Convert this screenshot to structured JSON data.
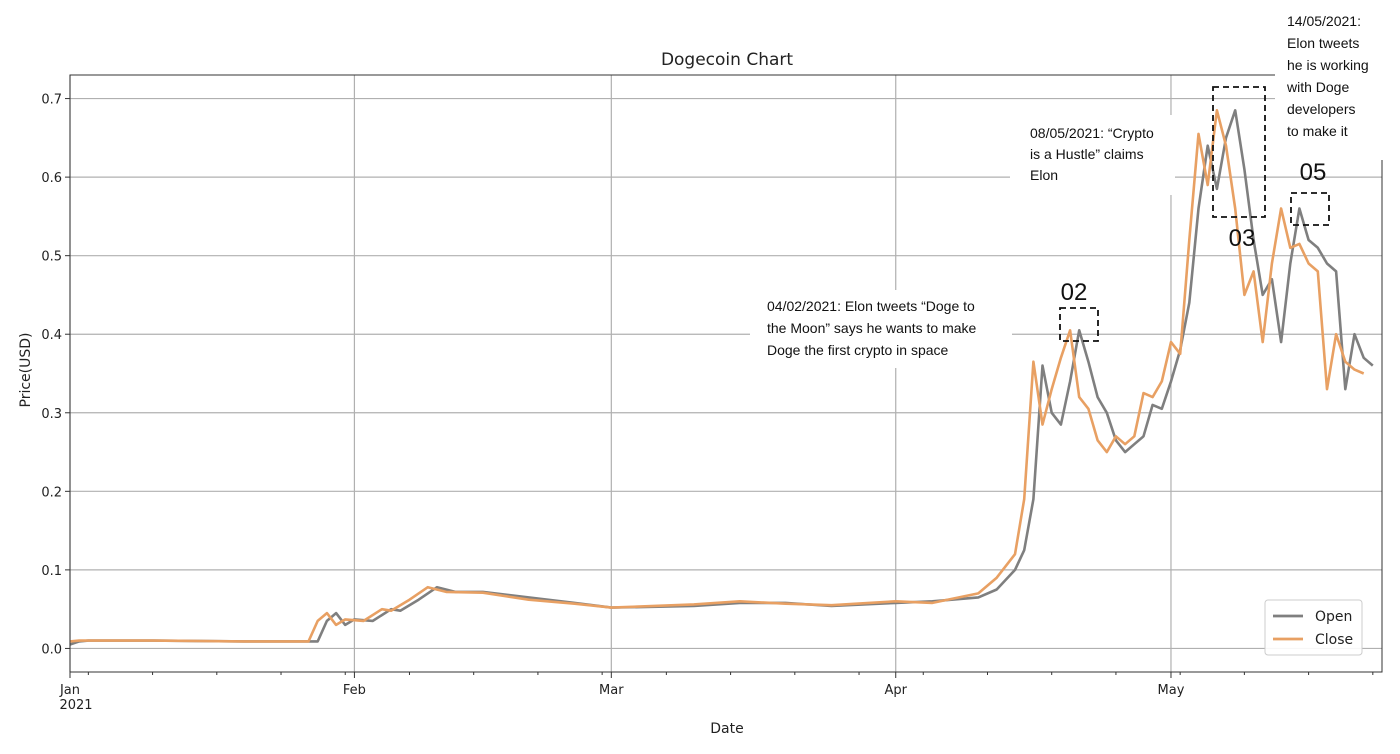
{
  "chart_data": {
    "type": "line",
    "title": "Dogecoin Chart",
    "xlabel": "Date",
    "ylabel": "Price(USD)",
    "ylim": [
      -0.03,
      0.73
    ],
    "xlim": [
      "2021-01-01",
      "2021-05-24"
    ],
    "grid": true,
    "legend_position": "lower-right",
    "x_ticks": [
      {
        "date": "2021-01-01",
        "label": "Jan",
        "sublabel": "2021"
      },
      {
        "date": "2021-02-01",
        "label": "Feb",
        "sublabel": ""
      },
      {
        "date": "2021-03-01",
        "label": "Mar",
        "sublabel": ""
      },
      {
        "date": "2021-04-01",
        "label": "Apr",
        "sublabel": ""
      },
      {
        "date": "2021-05-01",
        "label": "May",
        "sublabel": ""
      }
    ],
    "y_ticks": [
      {
        "value": 0.0,
        "label": "0.0"
      },
      {
        "value": 0.1,
        "label": "0.1"
      },
      {
        "value": 0.2,
        "label": "0.2"
      },
      {
        "value": 0.3,
        "label": "0.3"
      },
      {
        "value": 0.4,
        "label": "0.4"
      },
      {
        "value": 0.5,
        "label": "0.5"
      },
      {
        "value": 0.6,
        "label": "0.6"
      },
      {
        "value": 0.7,
        "label": "0.7"
      }
    ],
    "series": [
      {
        "name": "Open",
        "color": "#7f7f7f",
        "points": [
          [
            "2021-01-01",
            0.005
          ],
          [
            "2021-01-02",
            0.009
          ],
          [
            "2021-01-03",
            0.01
          ],
          [
            "2021-01-10",
            0.01
          ],
          [
            "2021-01-20",
            0.009
          ],
          [
            "2021-01-27",
            0.009
          ],
          [
            "2021-01-28",
            0.009
          ],
          [
            "2021-01-29",
            0.035
          ],
          [
            "2021-01-30",
            0.045
          ],
          [
            "2021-01-31",
            0.03
          ],
          [
            "2021-02-01",
            0.037
          ],
          [
            "2021-02-03",
            0.035
          ],
          [
            "2021-02-05",
            0.05
          ],
          [
            "2021-02-06",
            0.048
          ],
          [
            "2021-02-08",
            0.062
          ],
          [
            "2021-02-10",
            0.078
          ],
          [
            "2021-02-12",
            0.072
          ],
          [
            "2021-02-15",
            0.072
          ],
          [
            "2021-02-20",
            0.065
          ],
          [
            "2021-02-25",
            0.058
          ],
          [
            "2021-03-01",
            0.052
          ],
          [
            "2021-03-10",
            0.054
          ],
          [
            "2021-03-15",
            0.058
          ],
          [
            "2021-03-20",
            0.058
          ],
          [
            "2021-03-25",
            0.054
          ],
          [
            "2021-04-01",
            0.058
          ],
          [
            "2021-04-05",
            0.06
          ],
          [
            "2021-04-10",
            0.065
          ],
          [
            "2021-04-12",
            0.075
          ],
          [
            "2021-04-14",
            0.1
          ],
          [
            "2021-04-15",
            0.125
          ],
          [
            "2021-04-16",
            0.19
          ],
          [
            "2021-04-17",
            0.36
          ],
          [
            "2021-04-18",
            0.3
          ],
          [
            "2021-04-19",
            0.285
          ],
          [
            "2021-04-20",
            0.34
          ],
          [
            "2021-04-21",
            0.405
          ],
          [
            "2021-04-22",
            0.365
          ],
          [
            "2021-04-23",
            0.32
          ],
          [
            "2021-04-24",
            0.3
          ],
          [
            "2021-04-25",
            0.265
          ],
          [
            "2021-04-26",
            0.25
          ],
          [
            "2021-04-27",
            0.26
          ],
          [
            "2021-04-28",
            0.27
          ],
          [
            "2021-04-29",
            0.31
          ],
          [
            "2021-04-30",
            0.305
          ],
          [
            "2021-05-01",
            0.34
          ],
          [
            "2021-05-02",
            0.38
          ],
          [
            "2021-05-03",
            0.44
          ],
          [
            "2021-05-04",
            0.56
          ],
          [
            "2021-05-05",
            0.64
          ],
          [
            "2021-05-06",
            0.585
          ],
          [
            "2021-05-07",
            0.65
          ],
          [
            "2021-05-08",
            0.685
          ],
          [
            "2021-05-09",
            0.61
          ],
          [
            "2021-05-10",
            0.52
          ],
          [
            "2021-05-11",
            0.45
          ],
          [
            "2021-05-12",
            0.47
          ],
          [
            "2021-05-13",
            0.39
          ],
          [
            "2021-05-14",
            0.49
          ],
          [
            "2021-05-15",
            0.56
          ],
          [
            "2021-05-16",
            0.52
          ],
          [
            "2021-05-17",
            0.51
          ],
          [
            "2021-05-18",
            0.49
          ],
          [
            "2021-05-19",
            0.48
          ],
          [
            "2021-05-20",
            0.33
          ],
          [
            "2021-05-21",
            0.4
          ],
          [
            "2021-05-22",
            0.37
          ],
          [
            "2021-05-23",
            0.36
          ]
        ]
      },
      {
        "name": "Close",
        "color": "#e8a063",
        "points": [
          [
            "2021-01-01",
            0.009
          ],
          [
            "2021-01-02",
            0.01
          ],
          [
            "2021-01-10",
            0.01
          ],
          [
            "2021-01-20",
            0.009
          ],
          [
            "2021-01-27",
            0.009
          ],
          [
            "2021-01-28",
            0.035
          ],
          [
            "2021-01-29",
            0.045
          ],
          [
            "2021-01-30",
            0.03
          ],
          [
            "2021-01-31",
            0.037
          ],
          [
            "2021-02-02",
            0.035
          ],
          [
            "2021-02-04",
            0.05
          ],
          [
            "2021-02-05",
            0.048
          ],
          [
            "2021-02-07",
            0.062
          ],
          [
            "2021-02-09",
            0.078
          ],
          [
            "2021-02-11",
            0.072
          ],
          [
            "2021-02-15",
            0.071
          ],
          [
            "2021-02-20",
            0.062
          ],
          [
            "2021-02-25",
            0.057
          ],
          [
            "2021-03-01",
            0.052
          ],
          [
            "2021-03-10",
            0.056
          ],
          [
            "2021-03-15",
            0.06
          ],
          [
            "2021-03-20",
            0.057
          ],
          [
            "2021-03-25",
            0.055
          ],
          [
            "2021-04-01",
            0.06
          ],
          [
            "2021-04-05",
            0.058
          ],
          [
            "2021-04-10",
            0.07
          ],
          [
            "2021-04-12",
            0.09
          ],
          [
            "2021-04-14",
            0.12
          ],
          [
            "2021-04-15",
            0.19
          ],
          [
            "2021-04-16",
            0.365
          ],
          [
            "2021-04-17",
            0.285
          ],
          [
            "2021-04-18",
            0.33
          ],
          [
            "2021-04-19",
            0.37
          ],
          [
            "2021-04-20",
            0.405
          ],
          [
            "2021-04-21",
            0.32
          ],
          [
            "2021-04-22",
            0.305
          ],
          [
            "2021-04-23",
            0.265
          ],
          [
            "2021-04-24",
            0.25
          ],
          [
            "2021-04-25",
            0.27
          ],
          [
            "2021-04-26",
            0.26
          ],
          [
            "2021-04-27",
            0.27
          ],
          [
            "2021-04-28",
            0.325
          ],
          [
            "2021-04-29",
            0.32
          ],
          [
            "2021-04-30",
            0.34
          ],
          [
            "2021-05-01",
            0.39
          ],
          [
            "2021-05-02",
            0.375
          ],
          [
            "2021-05-03",
            0.52
          ],
          [
            "2021-05-04",
            0.655
          ],
          [
            "2021-05-05",
            0.59
          ],
          [
            "2021-05-06",
            0.685
          ],
          [
            "2021-05-07",
            0.64
          ],
          [
            "2021-05-08",
            0.56
          ],
          [
            "2021-05-09",
            0.45
          ],
          [
            "2021-05-10",
            0.48
          ],
          [
            "2021-05-11",
            0.39
          ],
          [
            "2021-05-12",
            0.49
          ],
          [
            "2021-05-13",
            0.56
          ],
          [
            "2021-05-14",
            0.51
          ],
          [
            "2021-05-15",
            0.515
          ],
          [
            "2021-05-16",
            0.49
          ],
          [
            "2021-05-17",
            0.48
          ],
          [
            "2021-05-18",
            0.33
          ],
          [
            "2021-05-19",
            0.4
          ],
          [
            "2021-05-20",
            0.365
          ],
          [
            "2021-05-21",
            0.355
          ],
          [
            "2021-05-22",
            0.35
          ]
        ]
      }
    ],
    "annotations": [
      {
        "id": "ann-02",
        "number": "02",
        "target": [
          "2021-04-20",
          0.405
        ],
        "text": [
          "04/02/2021: Elon tweets “Doge to",
          "the Moon” says he wants to make",
          "Doge the first crypto in space"
        ]
      },
      {
        "id": "ann-03",
        "number": "03",
        "target": [
          "2021-05-07",
          0.62
        ],
        "text": [
          "08/05/2021: “Crypto",
          "is a Hustle” claims",
          "Elon"
        ]
      },
      {
        "id": "ann-05",
        "number": "05",
        "target": [
          "2021-05-13",
          0.555
        ],
        "text": [
          "14/05/2021:",
          "Elon tweets",
          "he is working",
          "with Doge",
          "developers",
          "to make it"
        ]
      }
    ]
  }
}
